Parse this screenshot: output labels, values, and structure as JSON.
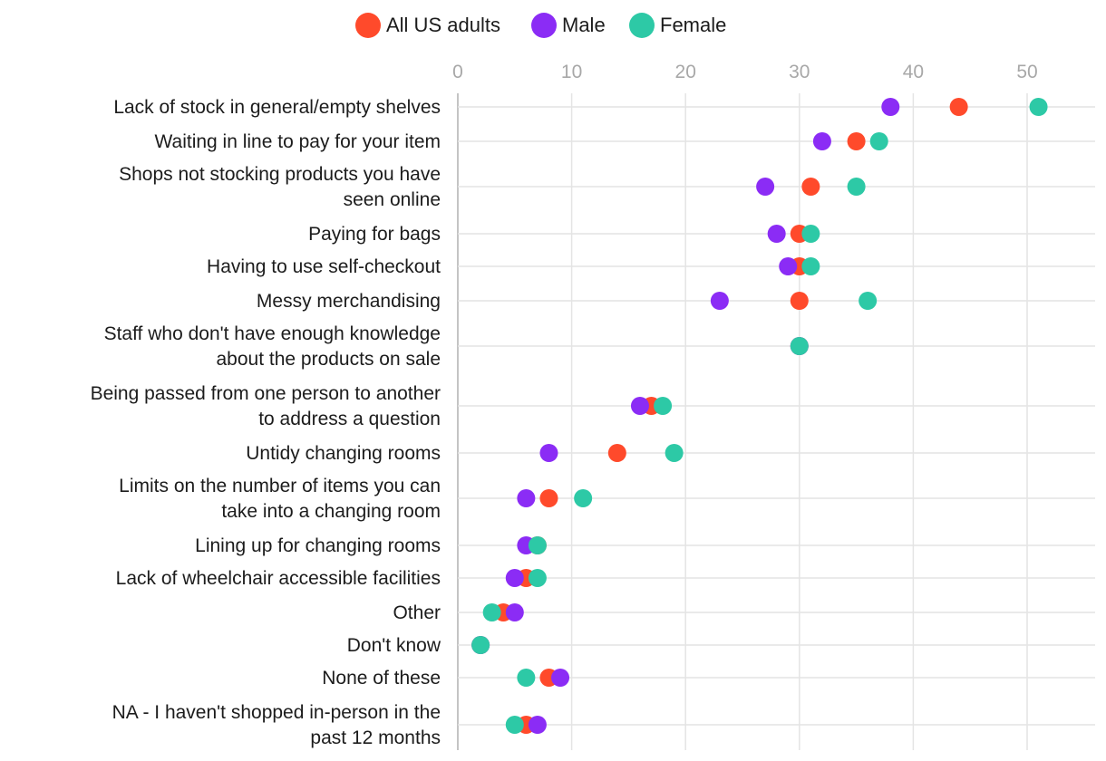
{
  "chart_data": {
    "type": "scatter",
    "subtype": "dot-plot",
    "orientation": "horizontal",
    "xlim": [
      0,
      55
    ],
    "xticks": [
      0,
      10,
      20,
      30,
      40,
      50
    ],
    "grid": true,
    "legend_position": "top",
    "legend": [
      "All US adults",
      "Male",
      "Female"
    ],
    "series_colors": {
      "All US adults": "#ff4a2b",
      "Male": "#8b2cf5",
      "Female": "#2dc9a6"
    },
    "categories": [
      [
        "Lack of stock in general/empty shelves"
      ],
      [
        "Waiting in line to pay for your item"
      ],
      [
        "Shops not stocking products you have",
        "seen online"
      ],
      [
        "Paying for bags"
      ],
      [
        "Having to use self-checkout"
      ],
      [
        "Messy merchandising"
      ],
      [
        "Staff who don't have enough knowledge",
        "about the products on sale"
      ],
      [
        "Being passed from one person to another",
        "to address a question"
      ],
      [
        "Untidy changing rooms"
      ],
      [
        "Limits on the number of items you can",
        "take into a changing room"
      ],
      [
        "Lining up for changing rooms"
      ],
      [
        "Lack of wheelchair accessible facilities"
      ],
      [
        "Other"
      ],
      [
        "Don't know"
      ],
      [
        "None of these"
      ],
      [
        "NA - I haven't shopped in-person in the",
        "past 12 months"
      ]
    ],
    "series": [
      {
        "name": "All US adults",
        "values": [
          44,
          35,
          31,
          30,
          30,
          30,
          30,
          17,
          14,
          8,
          7,
          6,
          4,
          2,
          8,
          6
        ]
      },
      {
        "name": "Male",
        "values": [
          38,
          32,
          27,
          28,
          29,
          23,
          30,
          16,
          8,
          6,
          6,
          5,
          5,
          2,
          9,
          7
        ]
      },
      {
        "name": "Female",
        "values": [
          51,
          37,
          35,
          31,
          31,
          36,
          30,
          18,
          19,
          11,
          7,
          7,
          3,
          2,
          6,
          5
        ]
      }
    ]
  }
}
